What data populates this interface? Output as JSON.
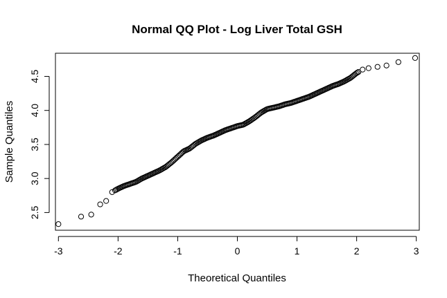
{
  "chart_data": {
    "type": "scatter",
    "title": "Normal QQ Plot - Log Liver Total GSH",
    "xlabel": "Theoretical Quantiles",
    "ylabel": "Sample Quantiles",
    "xlim": [
      -3.05,
      3.05
    ],
    "ylim": [
      2.24,
      4.84
    ],
    "x_ticks": [
      -3,
      -2,
      -1,
      0,
      1,
      2,
      3
    ],
    "x_tick_labels": [
      "-3",
      "-2",
      "-1",
      "0",
      "1",
      "2",
      "3"
    ],
    "y_ticks": [
      2.5,
      3.0,
      3.5,
      4.0,
      4.5
    ],
    "y_tick_labels": [
      "2.5",
      "3.0",
      "3.5",
      "4.0",
      "4.5"
    ],
    "grid": false,
    "legend": "none",
    "marker": "open-circle",
    "quantile_curve": {
      "x": [
        -3.0,
        -2.62,
        -2.45,
        -2.3,
        -2.2,
        -2.1,
        -2.0,
        -1.9,
        -1.8,
        -1.7,
        -1.6,
        -1.5,
        -1.4,
        -1.3,
        -1.2,
        -1.1,
        -1.0,
        -0.9,
        -0.8,
        -0.7,
        -0.6,
        -0.5,
        -0.4,
        -0.3,
        -0.2,
        -0.1,
        0.0,
        0.1,
        0.2,
        0.3,
        0.4,
        0.5,
        0.6,
        0.7,
        0.8,
        0.9,
        1.0,
        1.1,
        1.2,
        1.3,
        1.4,
        1.5,
        1.6,
        1.7,
        1.8,
        1.9,
        2.0,
        2.1,
        2.2,
        2.35,
        2.5,
        2.7,
        2.98
      ],
      "y": [
        2.33,
        2.44,
        2.47,
        2.62,
        2.67,
        2.8,
        2.85,
        2.89,
        2.92,
        2.95,
        3.0,
        3.04,
        3.08,
        3.12,
        3.17,
        3.24,
        3.32,
        3.4,
        3.44,
        3.51,
        3.56,
        3.6,
        3.63,
        3.67,
        3.71,
        3.74,
        3.77,
        3.79,
        3.84,
        3.9,
        3.97,
        4.02,
        4.04,
        4.06,
        4.09,
        4.11,
        4.14,
        4.17,
        4.2,
        4.24,
        4.28,
        4.32,
        4.36,
        4.39,
        4.43,
        4.48,
        4.55,
        4.6,
        4.62,
        4.64,
        4.66,
        4.71,
        4.77
      ]
    }
  }
}
